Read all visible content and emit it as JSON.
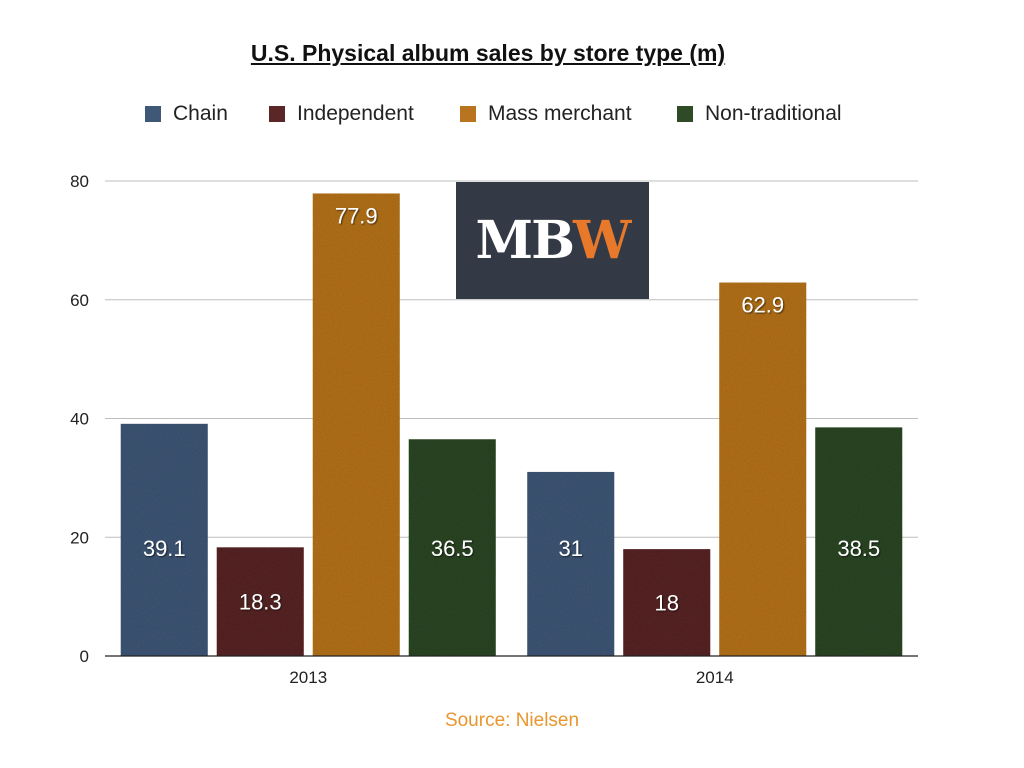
{
  "title": "U.S. Physical album sales by store type (m)",
  "source": "Source: Nielsen",
  "source_color": "#e8962e",
  "logo": {
    "part1": "MB",
    "part2": "W",
    "color1": "#ffffff",
    "color2": "#e8782a",
    "background": "#343a45"
  },
  "legend": [
    {
      "label": "Chain",
      "color": "#3f5878"
    },
    {
      "label": "Independent",
      "color": "#5a2626"
    },
    {
      "label": "Mass merchant",
      "color": "#b8741f"
    },
    {
      "label": "Non-traditional",
      "color": "#2e4a26"
    }
  ],
  "chart_data": {
    "type": "bar",
    "title": "U.S. Physical album sales by store type (m)",
    "categories": [
      "2013",
      "2014"
    ],
    "series": [
      {
        "name": "Chain",
        "values": [
          39.1,
          31
        ],
        "labels": [
          "39.1",
          "31"
        ],
        "color": "#3f5878"
      },
      {
        "name": "Independent",
        "values": [
          18.3,
          18
        ],
        "labels": [
          "18.3",
          "18"
        ],
        "color": "#5a2626"
      },
      {
        "name": "Mass merchant",
        "values": [
          77.9,
          62.9
        ],
        "labels": [
          "77.9",
          "62.9"
        ],
        "color": "#b8741f"
      },
      {
        "name": "Non-traditional",
        "values": [
          36.5,
          38.5
        ],
        "labels": [
          "36.5",
          "38.5"
        ],
        "color": "#2e4a26"
      }
    ],
    "ylim": [
      0,
      80
    ],
    "yticks": [
      0,
      20,
      40,
      60,
      80
    ],
    "grid": true,
    "legend_position": "top"
  }
}
